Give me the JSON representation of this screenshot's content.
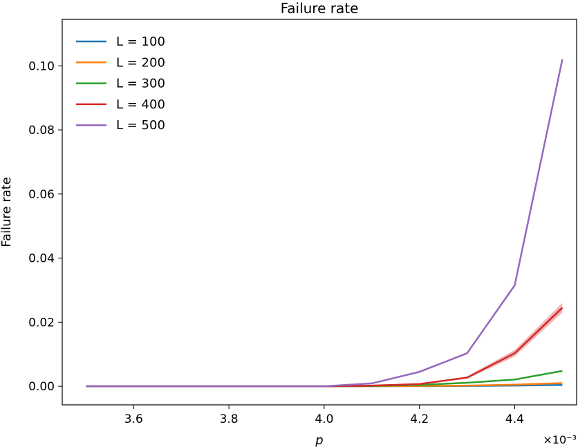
{
  "chart_data": {
    "type": "line",
    "title": "Failure rate",
    "xlabel": "p",
    "ylabel": "Failure rate",
    "x_multiplier_label": "×10⁻³",
    "xlim": [
      3.45,
      4.53
    ],
    "ylim": [
      -0.0058,
      0.1145
    ],
    "xticks": [
      3.6,
      3.8,
      4.0,
      4.2,
      4.4
    ],
    "xtick_labels": [
      "3.6",
      "3.8",
      "4.0",
      "4.2",
      "4.4"
    ],
    "yticks": [
      0.0,
      0.02,
      0.04,
      0.06,
      0.08,
      0.1
    ],
    "ytick_labels": [
      "0.00",
      "0.02",
      "0.04",
      "0.06",
      "0.08",
      "0.10"
    ],
    "grid": false,
    "legend_position": "upper-left",
    "x": [
      3.5,
      3.6,
      3.7,
      3.8,
      3.9,
      4.0,
      4.1,
      4.2,
      4.3,
      4.4,
      4.5
    ],
    "series": [
      {
        "name": "L = 100",
        "color": "#1f77b4",
        "values": [
          0,
          0,
          0,
          0,
          0,
          0,
          2e-05,
          5e-05,
          0.0001,
          0.0002,
          0.0004
        ],
        "band": [
          0,
          0,
          0,
          0,
          0,
          0,
          0,
          0,
          3e-05,
          5e-05,
          8e-05
        ]
      },
      {
        "name": "L = 200",
        "color": "#ff7f0e",
        "values": [
          0,
          0,
          0,
          0,
          0,
          0,
          3e-05,
          0.0001,
          0.0002,
          0.0005,
          0.001
        ],
        "band": [
          0,
          0,
          0,
          0,
          0,
          0,
          0,
          3e-05,
          5e-05,
          8e-05,
          0.00015
        ]
      },
      {
        "name": "L = 300",
        "color": "#2ca02c",
        "values": [
          0,
          0,
          0,
          0,
          0,
          0,
          0.0001,
          0.0004,
          0.0011,
          0.0021,
          0.0048
        ],
        "band": [
          0,
          0,
          0,
          0,
          0,
          0,
          2e-05,
          5e-05,
          0.0001,
          0.0002,
          0.0003
        ]
      },
      {
        "name": "L = 400",
        "color": "#d62728",
        "values": [
          0,
          0,
          0,
          0,
          0,
          0,
          0.0002,
          0.0007,
          0.0027,
          0.0103,
          0.0245
        ],
        "band": [
          0,
          0,
          0,
          0,
          0,
          0,
          5e-05,
          0.0001,
          0.0004,
          0.001,
          0.0015
        ]
      },
      {
        "name": "L = 500",
        "color": "#9467bd",
        "values": [
          0,
          0,
          0,
          0,
          0,
          0,
          0.0009,
          0.0045,
          0.0103,
          0.0315,
          0.102
        ],
        "band": [
          0,
          0,
          0,
          0,
          0,
          0,
          0.0001,
          0.0002,
          0.0003,
          0.0005,
          0.0008
        ]
      }
    ]
  }
}
